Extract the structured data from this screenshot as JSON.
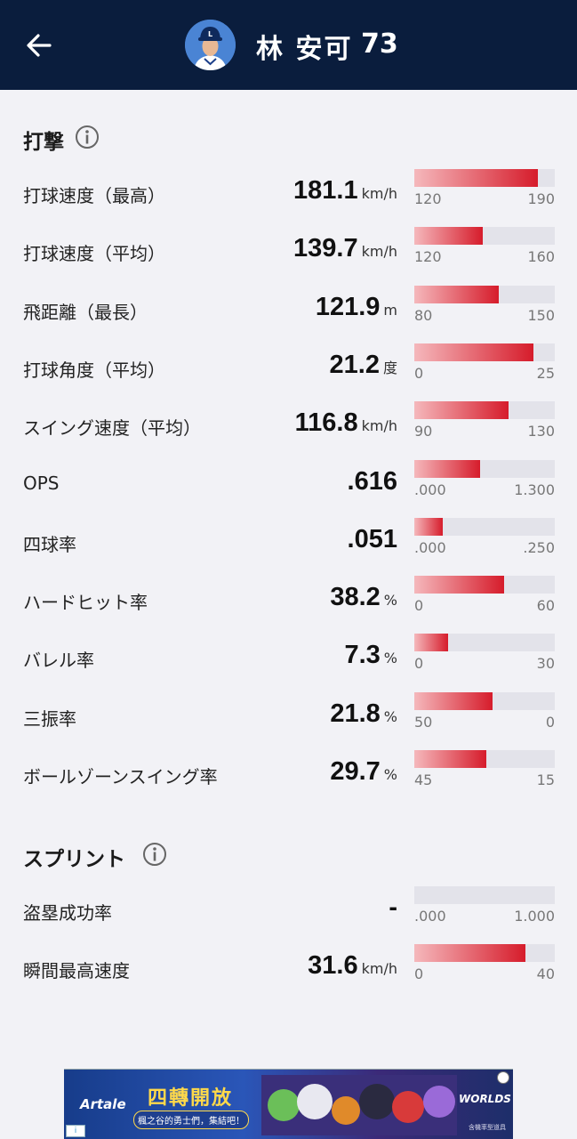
{
  "header": {
    "player_name": "林 安可",
    "player_number": "73"
  },
  "sections": [
    {
      "title": "打撃",
      "rows": [
        {
          "label": "打球速度（最高）",
          "value": "181.1",
          "unit": "km/h",
          "min": "120",
          "max": "190",
          "fill": 0.88
        },
        {
          "label": "打球速度（平均）",
          "value": "139.7",
          "unit": "km/h",
          "min": "120",
          "max": "160",
          "fill": 0.49
        },
        {
          "label": "飛距離（最長）",
          "value": "121.9",
          "unit": "m",
          "min": "80",
          "max": "150",
          "fill": 0.6
        },
        {
          "label": "打球角度（平均）",
          "value": "21.2",
          "unit": "度",
          "min": "0",
          "max": "25",
          "fill": 0.85
        },
        {
          "label": "スイング速度（平均）",
          "value": "116.8",
          "unit": "km/h",
          "min": "90",
          "max": "130",
          "fill": 0.67
        },
        {
          "label": "OPS",
          "value": ".616",
          "unit": "",
          "min": ".000",
          "max": "1.300",
          "fill": 0.47
        },
        {
          "label": "四球率",
          "value": ".051",
          "unit": "",
          "min": ".000",
          "max": ".250",
          "fill": 0.2
        },
        {
          "label": "ハードヒット率",
          "value": "38.2",
          "unit": "%",
          "min": "0",
          "max": "60",
          "fill": 0.64
        },
        {
          "label": "バレル率",
          "value": "7.3",
          "unit": "%",
          "min": "0",
          "max": "30",
          "fill": 0.24
        },
        {
          "label": "三振率",
          "value": "21.8",
          "unit": "%",
          "min": "50",
          "max": "0",
          "fill": 0.56
        },
        {
          "label": "ボールゾーンスイング率",
          "value": "29.7",
          "unit": "%",
          "min": "45",
          "max": "15",
          "fill": 0.51
        }
      ]
    },
    {
      "title": "スプリント",
      "rows": [
        {
          "label": "盗塁成功率",
          "value": "-",
          "unit": "",
          "min": ".000",
          "max": "1.000",
          "fill": 0
        },
        {
          "label": "瞬間最高速度",
          "value": "31.6",
          "unit": "km/h",
          "min": "0",
          "max": "40",
          "fill": 0.79
        }
      ]
    }
  ],
  "ad": {
    "brand": "Artale",
    "title": "四轉開放",
    "subtitle": "楓之谷的勇士們，集結吧！",
    "worlds": "WORLDS",
    "note": "含機率型道具"
  },
  "colors": {
    "header_bg": "#0a1d3d",
    "bar_fill_start": "#f5b8bc",
    "bar_fill_end": "#d61c2b",
    "bar_track": "#e3e3ea",
    "page_bg": "#f2f2f6"
  },
  "icons": {
    "back": "arrow-left-icon",
    "info": "info-circle-icon"
  }
}
